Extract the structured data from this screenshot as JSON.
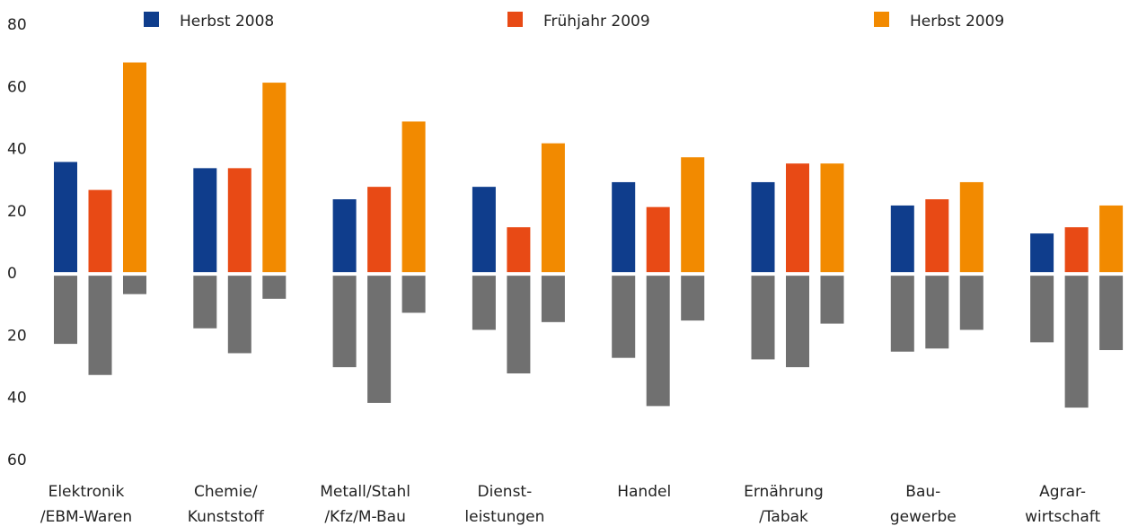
{
  "chart_data": {
    "type": "bar",
    "categories": [
      [
        "Elektronik",
        "/EBM-Waren"
      ],
      [
        "Chemie/",
        "Kunststoff"
      ],
      [
        "Metall/Stahl",
        "/Kfz/M-Bau"
      ],
      [
        "Dienst-",
        "leistungen"
      ],
      [
        "Handel"
      ],
      [
        "Ernährung",
        "/Tabak"
      ],
      [
        "Bau-",
        "gewerbe"
      ],
      [
        "Agrar-",
        "wirtschaft"
      ]
    ],
    "series": [
      {
        "name": "Herbst 2008",
        "color": "#0f3d8c",
        "values": [
          36,
          34,
          24,
          28,
          29.5,
          29.5,
          22,
          13
        ],
        "values_negative": [
          -22.5,
          -17.5,
          -30,
          -18,
          -27,
          -27.5,
          -25,
          -22
        ]
      },
      {
        "name": "Frühjahr 2009",
        "color": "#e84a15",
        "values": [
          27,
          34,
          28,
          15,
          21.5,
          35.5,
          24,
          15
        ],
        "values_negative": [
          -32.5,
          -25.5,
          -41.5,
          -32,
          -42.5,
          -30,
          -24,
          -43
        ]
      },
      {
        "name": "Herbst 2009",
        "color": "#f28a00",
        "values": [
          68,
          61.5,
          49,
          42,
          37.5,
          35.5,
          29.5,
          22
        ],
        "values_negative": [
          -6.5,
          -8,
          -12.5,
          -15.5,
          -15,
          -16,
          -18,
          -24.5
        ]
      }
    ],
    "negative_color": "#707070",
    "ylim": [
      -60,
      80
    ],
    "yticks": [
      {
        "value": -60,
        "label": "60"
      },
      {
        "value": -40,
        "label": "40"
      },
      {
        "value": -20,
        "label": "20"
      },
      0,
      20,
      40,
      60,
      80
    ]
  }
}
